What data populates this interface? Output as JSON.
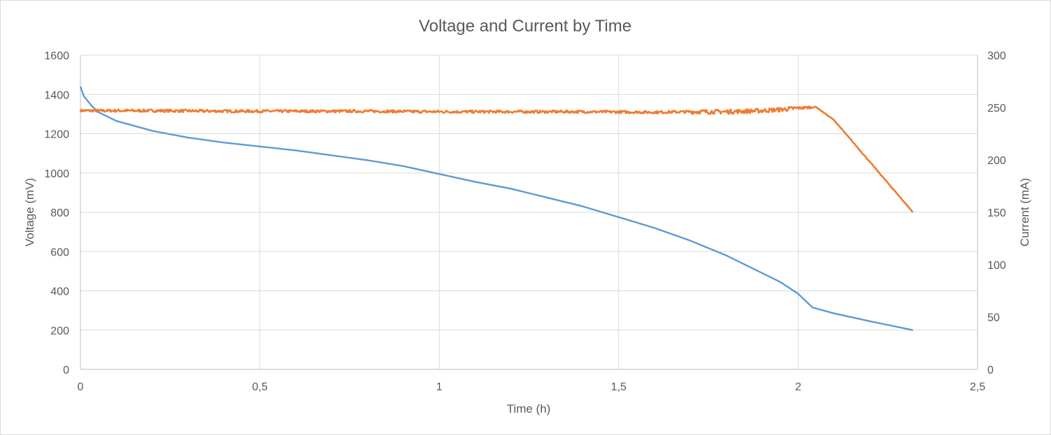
{
  "chart_data": {
    "type": "line",
    "title": "Voltage and Current by Time",
    "xlabel": "Time (h)",
    "ylabel": "Voltage (mV)",
    "y2label": "Current (mA)",
    "xlim": [
      0,
      2.5
    ],
    "ylim": [
      0,
      1600
    ],
    "y2lim": [
      0,
      300
    ],
    "xticks": [
      "0",
      "0,5",
      "1",
      "1,5",
      "2",
      "2,5"
    ],
    "yticks": [
      "0",
      "200",
      "400",
      "600",
      "800",
      "1000",
      "1200",
      "1400",
      "1600"
    ],
    "y2ticks": [
      "0",
      "50",
      "100",
      "150",
      "200",
      "250",
      "300"
    ],
    "grid": true,
    "legend": "none",
    "series": [
      {
        "axis": "left",
        "color": "#5B9BD5",
        "x": [
          0,
          0.01,
          0.03,
          0.05,
          0.1,
          0.2,
          0.3,
          0.4,
          0.5,
          0.6,
          0.7,
          0.8,
          0.9,
          1.0,
          1.1,
          1.2,
          1.3,
          1.4,
          1.5,
          1.6,
          1.7,
          1.8,
          1.9,
          1.95,
          2.0,
          2.04,
          2.1,
          2.2,
          2.32
        ],
        "values": [
          1440,
          1390,
          1345,
          1310,
          1265,
          1215,
          1180,
          1155,
          1135,
          1115,
          1090,
          1065,
          1035,
          995,
          955,
          920,
          875,
          830,
          775,
          720,
          655,
          580,
          490,
          445,
          385,
          315,
          285,
          245,
          200
        ]
      },
      {
        "axis": "right",
        "color": "#ED7D31",
        "x": [
          0,
          0.2,
          0.4,
          0.6,
          0.8,
          1.0,
          1.2,
          1.4,
          1.6,
          1.7,
          1.8,
          1.9,
          1.95,
          2.0,
          2.05,
          2.1,
          2.2,
          2.32
        ],
        "values": [
          247,
          247,
          246.5,
          246.5,
          246.5,
          246,
          246,
          246,
          245.5,
          246,
          246,
          247,
          248,
          249.5,
          250.5,
          238,
          198,
          150
        ]
      }
    ]
  }
}
